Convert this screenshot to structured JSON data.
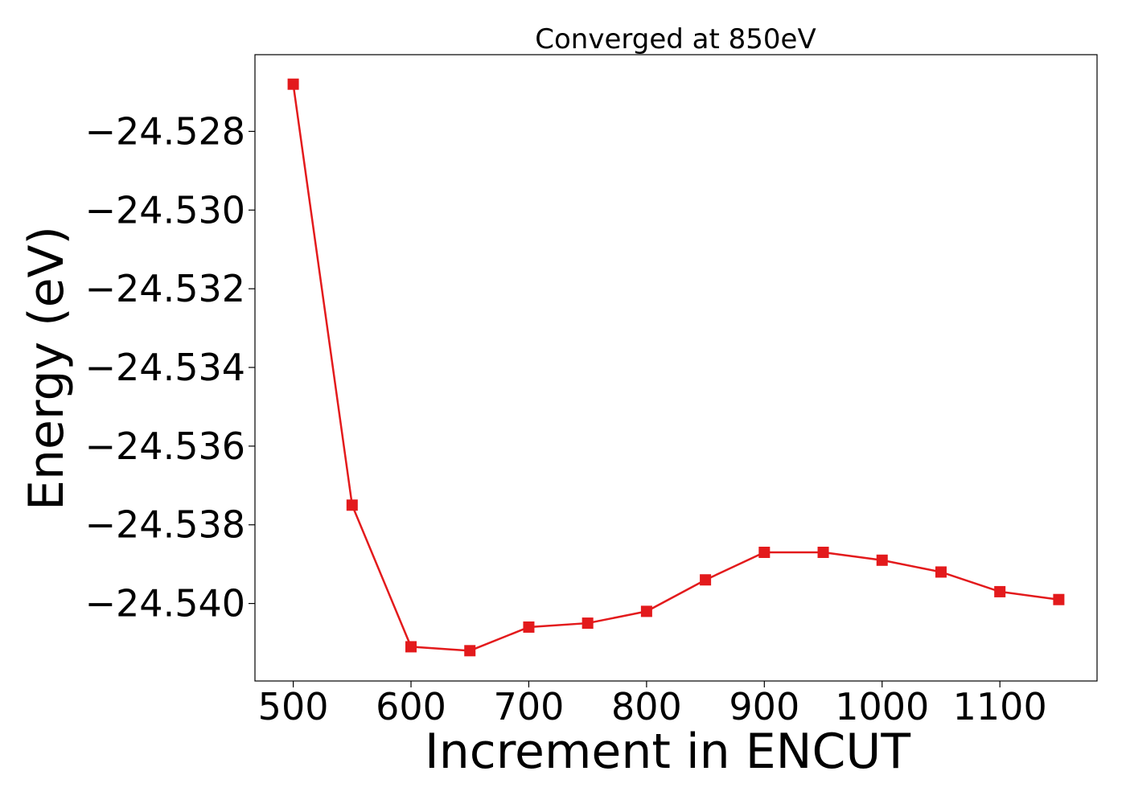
{
  "chart_data": {
    "type": "line",
    "title": "Converged at 850eV",
    "xlabel": "Increment in ENCUT",
    "ylabel": "Energy (eV)",
    "x": [
      500,
      550,
      600,
      650,
      700,
      750,
      800,
      850,
      900,
      950,
      1000,
      1050,
      1100,
      1150
    ],
    "series": [
      {
        "values": [
          -24.5268,
          -24.5375,
          -24.5411,
          -24.5412,
          -24.5406,
          -24.5405,
          -24.5402,
          -24.5394,
          -24.5387,
          -24.5387,
          -24.5389,
          -24.5392,
          -24.5397,
          -24.5399
        ],
        "color": "#e31a1c",
        "marker": "square"
      }
    ],
    "xlim": [
      467.5,
      1182.5
    ],
    "ylim": [
      -24.54197,
      -24.52605
    ],
    "xticks": [
      500,
      600,
      700,
      800,
      900,
      1000,
      1100
    ],
    "xtick_labels": [
      "500",
      "600",
      "700",
      "800",
      "900",
      "1000",
      "1100"
    ],
    "yticks": [
      -24.528,
      -24.53,
      -24.532,
      -24.534,
      -24.536,
      -24.538,
      -24.54
    ],
    "ytick_labels": [
      "−24.528",
      "−24.530",
      "−24.532",
      "−24.534",
      "−24.536",
      "−24.538",
      "−24.540"
    ],
    "grid": false,
    "legend": "none"
  }
}
